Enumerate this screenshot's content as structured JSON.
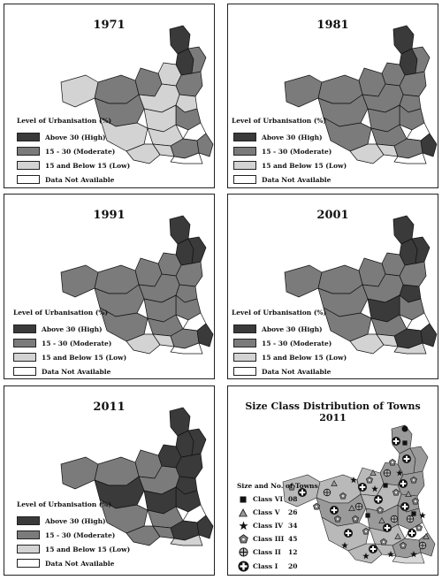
{
  "legend": {
    "title": "Level of Urbanisation (%)",
    "items": [
      {
        "label": "Above 30 (High)",
        "color": "#3a3a3a"
      },
      {
        "label": "15 - 30 (Moderate)",
        "color": "#7b7b7b"
      },
      {
        "label": "15 and Below 15 (Low)",
        "color": "#d3d3d3"
      },
      {
        "label": "Data Not Available",
        "color": "#ffffff"
      }
    ]
  },
  "panels": [
    {
      "year": "1971"
    },
    {
      "year": "1981"
    },
    {
      "year": "1991"
    },
    {
      "year": "2001"
    },
    {
      "year": "2011"
    }
  ],
  "size_class": {
    "title_line1": "Size Class Distribution of Towns",
    "title_line2": "2011",
    "legend_title": "Size and No. of Towns",
    "classes": [
      {
        "label": "Class VI",
        "count": "08",
        "icon": "square-icon"
      },
      {
        "label": "Class V",
        "count": "26",
        "icon": "triangle-icon"
      },
      {
        "label": "Class IV",
        "count": "34",
        "icon": "star-icon"
      },
      {
        "label": "Class III",
        "count": "45",
        "icon": "pentagon-icon"
      },
      {
        "label": "Class II",
        "count": "12",
        "icon": "circle-cross-icon"
      },
      {
        "label": "Class I",
        "count": "20",
        "icon": "circle-plus-icon"
      }
    ]
  }
}
